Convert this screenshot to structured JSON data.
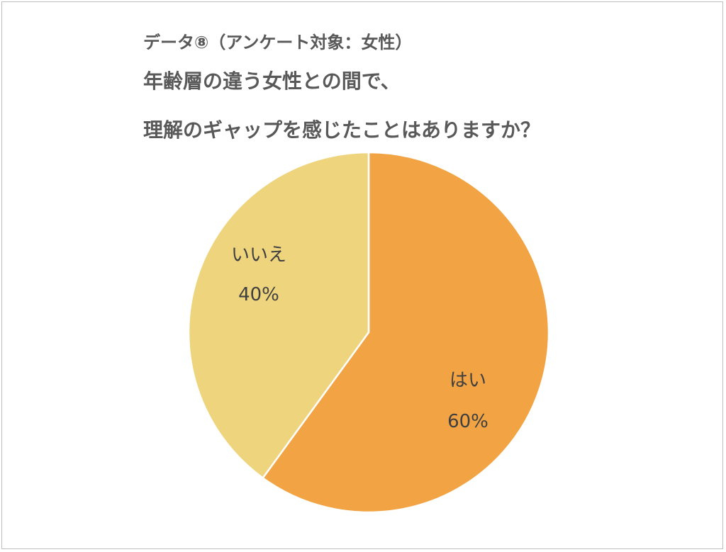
{
  "header": {
    "subtitle": "データ⑧（アンケート対象：女性）",
    "title_line1": "年齢層の違う女性との間で、",
    "title_line2": "理解のギャップを感じたことはありますか？"
  },
  "colors": {
    "yes": "#F2A444",
    "no": "#EFD47E",
    "separator": "#ffffff",
    "text": "#595959"
  },
  "chart_data": {
    "type": "pie",
    "title": "年齢層の違う女性との間で、理解のギャップを感じたことはありますか？",
    "categories": [
      "はい",
      "いいえ"
    ],
    "values": [
      60,
      40
    ],
    "labels": [
      "60%",
      "40%"
    ],
    "start": "12 o'clock",
    "direction": "clockwise",
    "legend": "none"
  }
}
